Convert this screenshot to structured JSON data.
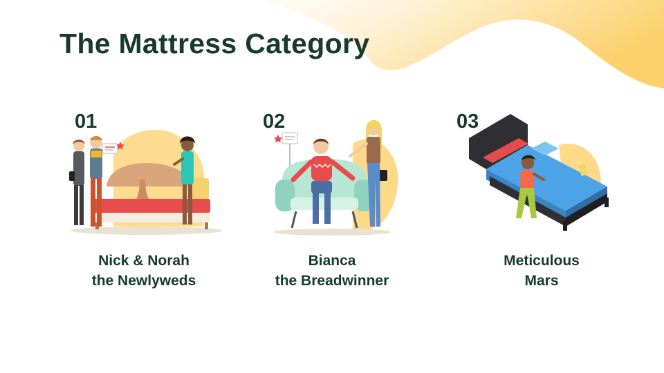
{
  "slide": {
    "title": "The Mattress Category",
    "colors": {
      "accent_yellow": "#fcd06a",
      "title_green": "#173a2c",
      "background": "#ffffff"
    },
    "personas": [
      {
        "number": "01",
        "name_line1": "Nick & Norah",
        "name_line2": "the Newlyweds",
        "illustration": "couple-shopping-for-bed-illustration"
      },
      {
        "number": "02",
        "name_line1": "Bianca",
        "name_line2": "the Breadwinner",
        "illustration": "couple-with-armchair-illustration"
      },
      {
        "number": "03",
        "name_line1": "Meticulous",
        "name_line2": "Mars",
        "illustration": "woman-making-bed-illustration"
      }
    ]
  }
}
